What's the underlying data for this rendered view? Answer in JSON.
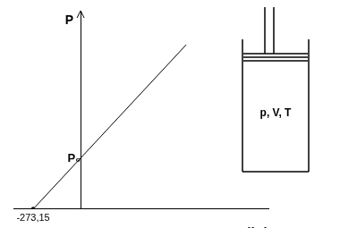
{
  "chart_data": {
    "type": "line",
    "x": [
      -273.15,
      608
    ],
    "values": [
      0,
      3.23
    ],
    "color": "#000000",
    "xlim": [
      -387,
      1082
    ],
    "ylim": [
      0,
      3.9
    ],
    "xticks": [
      {
        "value": -273.15,
        "label": "-273,15"
      }
    ],
    "yticks": [
      {
        "value": 1,
        "label": "P₀"
      }
    ],
    "x_label": "T (°C)",
    "y_label": "P",
    "annotations": [
      "p, V, T"
    ],
    "grid": false
  }
}
